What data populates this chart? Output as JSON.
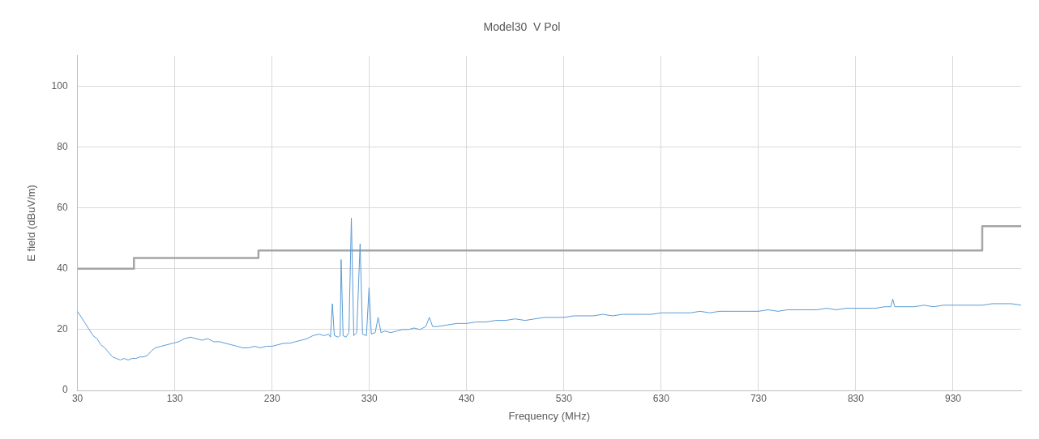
{
  "chart_data": {
    "type": "line",
    "title": "Model30  V Pol",
    "xlabel": "Frequency (MHz)",
    "ylabel": "E field (dBuV/m)",
    "xlim": [
      30,
      1000
    ],
    "xticks": [
      30,
      130,
      230,
      330,
      430,
      530,
      630,
      730,
      830,
      930
    ],
    "ylim": [
      0,
      110
    ],
    "yticks": [
      0,
      20,
      40,
      60,
      80,
      100
    ],
    "grid": true,
    "legend": false,
    "marker": "none",
    "line_style": "solid",
    "series": [
      {
        "color": "#5b9bd5",
        "x": [
          30,
          34,
          38,
          42,
          46,
          50,
          54,
          58,
          62,
          66,
          70,
          74,
          78,
          82,
          86,
          90,
          94,
          98,
          102,
          106,
          110,
          116,
          122,
          128,
          134,
          140,
          146,
          152,
          158,
          164,
          170,
          176,
          182,
          188,
          194,
          200,
          206,
          212,
          218,
          224,
          230,
          236,
          242,
          248,
          254,
          260,
          266,
          272,
          278,
          284,
          288,
          290,
          292,
          294,
          298,
          300,
          301,
          303,
          306,
          309,
          311.5,
          314,
          317,
          320.5,
          323,
          327,
          329.7,
          332,
          336,
          339,
          342,
          346,
          352,
          358,
          364,
          370,
          376,
          382,
          388,
          391.7,
          395,
          400,
          410,
          420,
          430,
          440,
          450,
          460,
          470,
          480,
          490,
          500,
          510,
          520,
          530,
          540,
          550,
          560,
          570,
          580,
          590,
          600,
          610,
          620,
          630,
          640,
          650,
          660,
          670,
          680,
          690,
          700,
          710,
          720,
          730,
          740,
          750,
          760,
          770,
          780,
          790,
          800,
          810,
          820,
          830,
          840,
          850,
          860,
          866,
          868,
          870,
          880,
          890,
          900,
          910,
          920,
          930,
          940,
          950,
          960,
          970,
          980,
          990,
          1000
        ],
        "values": [
          26,
          24,
          22,
          20,
          18,
          17,
          15,
          14,
          12.5,
          11,
          10.5,
          10,
          10.5,
          10,
          10.5,
          10.5,
          11,
          11,
          11.5,
          13,
          14,
          14.5,
          15,
          15.5,
          16,
          17,
          17.5,
          17,
          16.5,
          17,
          16,
          16,
          15.5,
          15,
          14.5,
          14,
          14,
          14.5,
          14,
          14.5,
          14.5,
          15,
          15.5,
          15.5,
          16,
          16.5,
          17,
          18,
          18.5,
          18,
          18.5,
          17.5,
          28.5,
          18,
          17.5,
          18,
          43,
          18,
          17.5,
          19,
          56.7,
          18,
          19,
          48.2,
          18.5,
          18,
          33.7,
          18.5,
          19,
          24,
          19,
          19.5,
          19,
          19.5,
          20,
          20,
          20.5,
          20,
          21,
          24,
          21,
          21,
          21.5,
          22,
          22,
          22.5,
          22.5,
          23,
          23,
          23.5,
          23,
          23.5,
          24,
          24,
          24,
          24.5,
          24.5,
          24.5,
          25,
          24.5,
          25,
          25,
          25,
          25,
          25.5,
          25.5,
          25.5,
          25.5,
          26,
          25.5,
          26,
          26,
          26,
          26,
          26,
          26.5,
          26,
          26.5,
          26.5,
          26.5,
          26.5,
          27,
          26.5,
          27,
          27,
          27,
          27,
          27.5,
          27.5,
          30,
          27.5,
          27.5,
          27.5,
          28,
          27.5,
          28,
          28,
          28,
          28,
          28,
          28.5,
          28.5,
          28.5,
          28
        ]
      },
      {
        "color": "#a5a5a5",
        "x": [
          30,
          88,
          88,
          216,
          216,
          960,
          960,
          1000
        ],
        "values": [
          40,
          40,
          43.5,
          43.5,
          46,
          46,
          54,
          54
        ]
      }
    ]
  }
}
